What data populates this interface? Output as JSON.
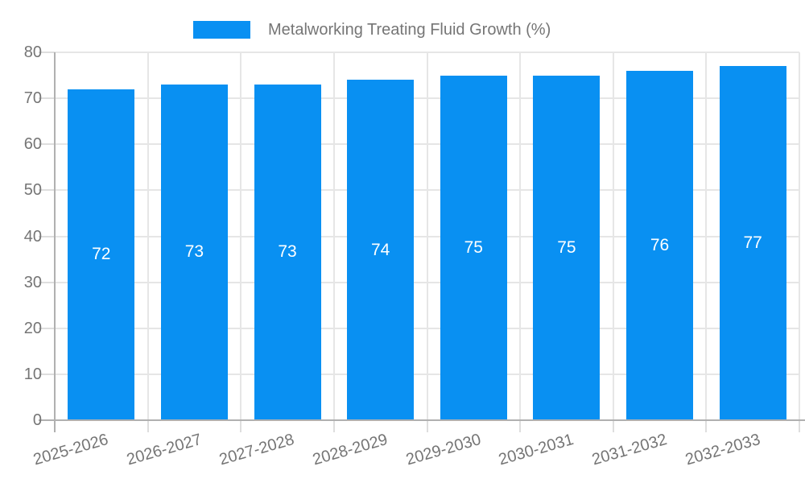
{
  "chart_data": {
    "type": "bar",
    "title": "Metalworking Treating Fluid Growth (%)",
    "categories": [
      "2025-2026",
      "2026-2027",
      "2027-2028",
      "2028-2029",
      "2029-2030",
      "2030-2031",
      "2031-2032",
      "2032-2033"
    ],
    "values": [
      72,
      73,
      73,
      74,
      75,
      75,
      76,
      77
    ],
    "bar_value_labels": [
      "72",
      "73",
      "73",
      "74",
      "75",
      "75",
      "76",
      "77"
    ],
    "xlabel": "",
    "ylabel": "",
    "ylim": [
      0,
      80
    ],
    "yticks": [
      0,
      10,
      20,
      30,
      40,
      50,
      60,
      70,
      80
    ],
    "ytick_labels": [
      "0",
      "10",
      "20",
      "30",
      "40",
      "50",
      "60",
      "70",
      "80"
    ],
    "grid": true,
    "legend_position": "top",
    "colors": {
      "bar": "#0990f2",
      "grid": "#e6e6e6",
      "axis": "#b0b0b0",
      "tick": "#dedede",
      "text": "#757575",
      "value_label": "#ffffff"
    }
  }
}
